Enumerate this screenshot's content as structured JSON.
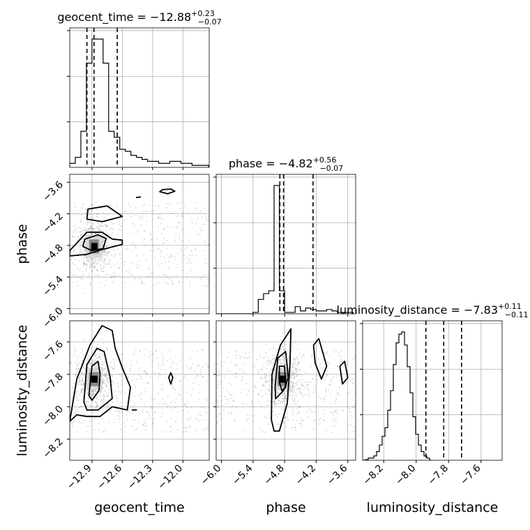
{
  "chart_data": {
    "type": "corner",
    "parameters": [
      "geocent_time",
      "phase",
      "luminosity_distance"
    ],
    "axis_ranges": {
      "geocent_time": [
        -13.12,
        -11.74
      ],
      "phase": [
        -6.1,
        -3.45
      ],
      "luminosity_distance": [
        -8.33,
        -7.47
      ]
    },
    "ticks": {
      "geocent_time": [
        "−12.9",
        "−12.6",
        "−12.3",
        "−12.0"
      ],
      "phase": [
        "−6.0",
        "−5.4",
        "−4.8",
        "−4.2",
        "−3.6"
      ],
      "luminosity_distance": [
        "−8.2",
        "−8.0",
        "−7.8",
        "−7.6"
      ]
    },
    "titles": [
      {
        "name": "geocent_time",
        "median": "−12.88",
        "plus": "+0.23",
        "minus": "−0.07"
      },
      {
        "name": "phase",
        "median": "−4.82",
        "plus": "+0.56",
        "minus": "−0.07"
      },
      {
        "name": "luminosity_distance",
        "median": "−7.83",
        "plus": "+0.11",
        "minus": "−0.11"
      }
    ],
    "quantile_lines": {
      "geocent_time": [
        -12.95,
        -12.88,
        -12.65
      ],
      "phase": [
        -4.89,
        -4.82,
        -4.26
      ],
      "luminosity_distance": [
        -7.94,
        -7.83,
        -7.72
      ]
    },
    "histograms": {
      "geocent_time": {
        "start": -13.12,
        "step": 0.055,
        "counts": [
          2,
          5,
          18,
          52,
          64,
          64,
          52,
          18,
          15,
          9,
          8,
          6,
          5,
          4,
          3,
          3,
          2,
          2,
          3,
          3,
          2,
          2,
          1,
          1,
          1
        ]
      },
      "phase": {
        "start": -6.1,
        "step": 0.1,
        "counts": [
          0,
          0,
          0,
          0,
          0,
          0,
          0,
          1,
          10,
          14,
          16,
          89,
          16,
          1,
          1,
          5,
          2,
          4,
          3,
          2,
          2,
          3,
          2,
          1,
          1,
          1
        ]
      },
      "luminosity_distance": {
        "start": -8.33,
        "step": 0.0172,
        "counts": [
          0,
          0.3,
          1,
          1,
          2,
          4,
          7,
          11,
          15,
          23,
          32,
          44,
          54,
          58,
          59,
          53,
          43,
          31,
          20,
          12,
          7,
          4,
          2,
          1,
          0
        ]
      }
    },
    "histogram_ylim": [
      0,
      1.02
    ],
    "density_2d": [
      {
        "x": "geocent_time",
        "y": "phase",
        "peak": [
          -12.88,
          -4.82
        ],
        "contours": [
          [
            [
              -12.97,
              -4.68
            ],
            [
              -12.84,
              -4.6
            ],
            [
              -12.76,
              -4.67
            ],
            [
              -12.79,
              -4.86
            ],
            [
              -12.9,
              -4.9
            ],
            [
              -12.99,
              -4.82
            ]
          ],
          [
            [
              -13.12,
              -4.9
            ],
            [
              -12.95,
              -4.55
            ],
            [
              -12.8,
              -4.55
            ],
            [
              -12.7,
              -4.68
            ],
            [
              -12.6,
              -4.7
            ],
            [
              -12.6,
              -4.78
            ],
            [
              -12.8,
              -4.88
            ],
            [
              -12.95,
              -4.97
            ],
            [
              -13.12,
              -5.0
            ]
          ],
          [
            [
              -12.94,
              -4.11
            ],
            [
              -12.75,
              -4.05
            ],
            [
              -12.6,
              -4.25
            ],
            [
              -12.8,
              -4.35
            ],
            [
              -12.95,
              -4.3
            ]
          ],
          [
            [
              -12.2,
              -3.74
            ],
            [
              -12.12,
              -3.73
            ],
            [
              -12.08,
              -3.77
            ],
            [
              -12.15,
              -3.82
            ],
            [
              -12.23,
              -3.78
            ]
          ],
          [
            [
              -12.42,
              -3.88
            ],
            [
              -12.46,
              -3.89
            ]
          ]
        ]
      },
      {
        "x": "geocent_time",
        "y": "luminosity_distance",
        "peak": [
          -12.88,
          -7.83
        ],
        "contours": [
          [
            [
              -12.93,
              -7.93
            ],
            [
              -12.9,
              -7.75
            ],
            [
              -12.84,
              -7.72
            ],
            [
              -12.82,
              -7.8
            ],
            [
              -12.83,
              -7.9
            ],
            [
              -12.9,
              -7.96
            ]
          ],
          [
            [
              -12.98,
              -7.97
            ],
            [
              -12.95,
              -7.74
            ],
            [
              -12.85,
              -7.64
            ],
            [
              -12.78,
              -7.66
            ],
            [
              -12.72,
              -7.82
            ],
            [
              -12.7,
              -7.95
            ],
            [
              -12.84,
              -8.02
            ],
            [
              -12.95,
              -8.02
            ]
          ],
          [
            [
              -13.12,
              -8.09
            ],
            [
              -13.05,
              -7.83
            ],
            [
              -12.92,
              -7.62
            ],
            [
              -12.8,
              -7.5
            ],
            [
              -12.7,
              -7.53
            ],
            [
              -12.67,
              -7.64
            ],
            [
              -12.6,
              -7.76
            ],
            [
              -12.52,
              -7.88
            ],
            [
              -12.55,
              -8.02
            ],
            [
              -12.7,
              -8.0
            ],
            [
              -12.82,
              -8.06
            ],
            [
              -12.95,
              -8.06
            ],
            [
              -13.05,
              -8.05
            ]
          ],
          [
            [
              -12.12,
              -7.79
            ],
            [
              -12.1,
              -7.82
            ],
            [
              -12.12,
              -7.86
            ],
            [
              -12.14,
              -7.82
            ]
          ],
          [
            [
              -12.5,
              -8.02
            ],
            [
              -12.46,
              -8.02
            ]
          ]
        ]
      },
      {
        "x": "phase",
        "y": "luminosity_distance",
        "peak": [
          -4.84,
          -7.83
        ],
        "contours": [
          [
            [
              -4.9,
              -7.75
            ],
            [
              -4.8,
              -7.75
            ],
            [
              -4.78,
              -7.88
            ],
            [
              -4.85,
              -7.9
            ],
            [
              -4.9,
              -7.85
            ]
          ],
          [
            [
              -4.98,
              -7.88
            ],
            [
              -4.93,
              -7.7
            ],
            [
              -4.78,
              -7.66
            ],
            [
              -4.73,
              -7.82
            ],
            [
              -4.82,
              -7.9
            ],
            [
              -4.97,
              -7.95
            ]
          ],
          [
            [
              -5.05,
              -8.08
            ],
            [
              -5.04,
              -7.8
            ],
            [
              -4.88,
              -7.62
            ],
            [
              -4.68,
              -7.52
            ],
            [
              -4.7,
              -7.75
            ],
            [
              -4.75,
              -7.98
            ],
            [
              -4.9,
              -8.15
            ],
            [
              -5.0,
              -8.15
            ]
          ],
          [
            [
              -4.25,
              -7.62
            ],
            [
              -4.15,
              -7.58
            ],
            [
              -4.0,
              -7.75
            ],
            [
              -4.1,
              -7.83
            ],
            [
              -4.22,
              -7.73
            ]
          ],
          [
            [
              -3.75,
              -7.75
            ],
            [
              -3.66,
              -7.72
            ],
            [
              -3.6,
              -7.82
            ],
            [
              -3.7,
              -7.86
            ]
          ]
        ]
      }
    ]
  }
}
